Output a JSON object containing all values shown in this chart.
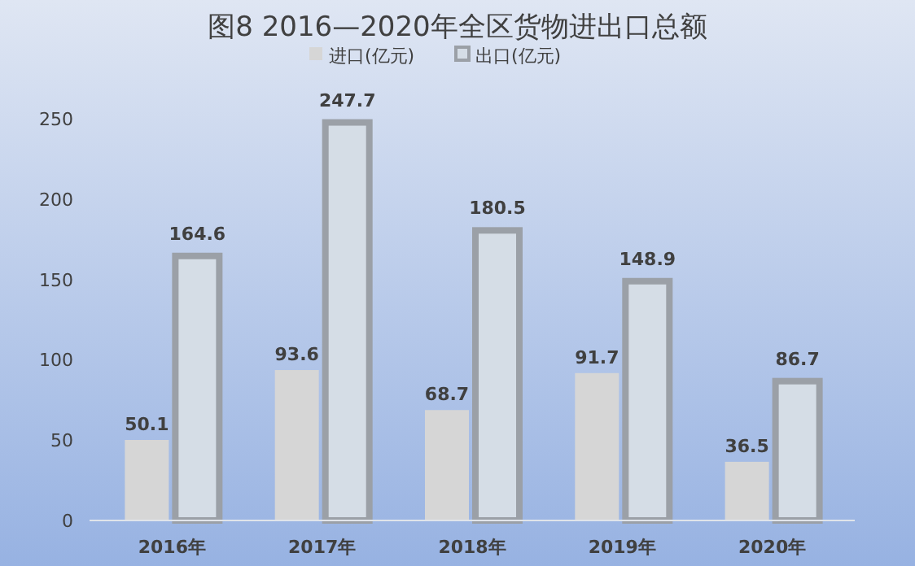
{
  "chart_data": {
    "type": "bar",
    "title": "图8 2016—2020年全区货物进出口总额",
    "categories": [
      "2016年",
      "2017年",
      "2018年",
      "2019年",
      "2020年"
    ],
    "series": [
      {
        "name": "进口(亿元)",
        "color": "#d6d6d6",
        "values": [
          50.1,
          93.6,
          68.7,
          91.7,
          36.5
        ]
      },
      {
        "name": "出口(亿元)",
        "color": "#d5dde6",
        "values": [
          164.6,
          247.7,
          180.5,
          148.9,
          86.7
        ]
      }
    ],
    "ylim": [
      0,
      250
    ],
    "yticks": [
      0,
      50,
      100,
      150,
      200,
      250
    ],
    "grid": false,
    "legend": "top",
    "data_labels": true
  }
}
